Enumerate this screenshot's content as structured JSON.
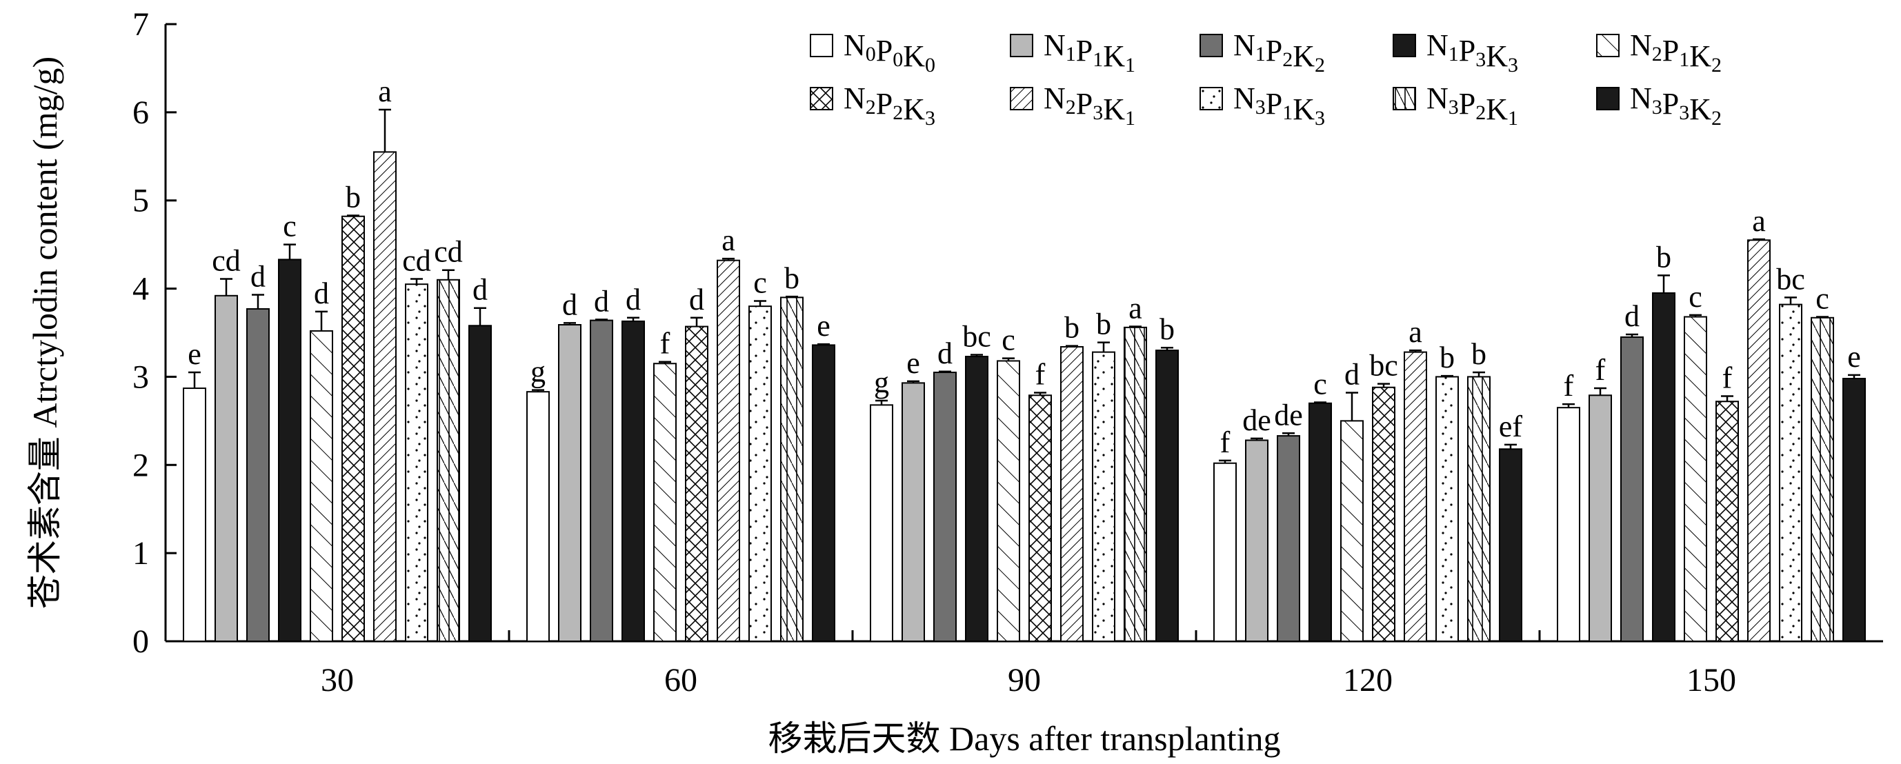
{
  "chart_data": {
    "type": "bar",
    "xlabel": "移栽后天数 Days after transplanting",
    "ylabel": "苍术素含量 Atrctylodin content (mg/g)",
    "ylim": [
      0,
      7
    ],
    "yticks": [
      "0",
      "1",
      "2",
      "3",
      "4",
      "5",
      "6",
      "7"
    ],
    "grid": false,
    "legend_position": "top-right",
    "categories": [
      "30",
      "60",
      "90",
      "120",
      "150"
    ],
    "series": [
      {
        "name": "N0P0K0",
        "legend": [
          [
            "N",
            "0"
          ],
          [
            "P",
            "0"
          ],
          [
            "K",
            "0"
          ]
        ],
        "pattern": "white",
        "values": [
          2.87,
          2.83,
          2.68,
          2.02,
          2.65
        ],
        "errors": [
          0.18,
          0.02,
          0.05,
          0.03,
          0.04
        ],
        "labels": [
          "e",
          "g",
          "g",
          "f",
          "f"
        ]
      },
      {
        "name": "N1P1K1",
        "legend": [
          [
            "N",
            "1"
          ],
          [
            "P",
            "1"
          ],
          [
            "K",
            "1"
          ]
        ],
        "pattern": "lightgray",
        "values": [
          3.92,
          3.59,
          2.93,
          2.28,
          2.79
        ],
        "errors": [
          0.19,
          0.02,
          0.02,
          0.02,
          0.08
        ],
        "labels": [
          "cd",
          "d",
          "e",
          "de",
          "f"
        ]
      },
      {
        "name": "N1P2K2",
        "legend": [
          [
            "N",
            "1"
          ],
          [
            "P",
            "2"
          ],
          [
            "K",
            "2"
          ]
        ],
        "pattern": "darkgray",
        "values": [
          3.77,
          3.64,
          3.05,
          2.33,
          3.45
        ],
        "errors": [
          0.16,
          0.01,
          0.01,
          0.03,
          0.03
        ],
        "labels": [
          "d",
          "d",
          "d",
          "de",
          "d"
        ]
      },
      {
        "name": "N1P3K3",
        "legend": [
          [
            "N",
            "1"
          ],
          [
            "P",
            "3"
          ],
          [
            "K",
            "3"
          ]
        ],
        "pattern": "black",
        "values": [
          4.33,
          3.63,
          3.23,
          2.7,
          3.95
        ],
        "errors": [
          0.17,
          0.04,
          0.02,
          0.01,
          0.2
        ],
        "labels": [
          "c",
          "d",
          "bc",
          "c",
          "b"
        ]
      },
      {
        "name": "N2P1K2",
        "legend": [
          [
            "N",
            "2"
          ],
          [
            "P",
            "1"
          ],
          [
            "K",
            "2"
          ]
        ],
        "pattern": "diag-sparse",
        "values": [
          3.52,
          3.15,
          3.18,
          2.5,
          3.68
        ],
        "errors": [
          0.22,
          0.02,
          0.03,
          0.32,
          0.02
        ],
        "labels": [
          "d",
          "f",
          "c",
          "d",
          "c"
        ]
      },
      {
        "name": "N2P2K3",
        "legend": [
          [
            "N",
            "2"
          ],
          [
            "P",
            "2"
          ],
          [
            "K",
            "3"
          ]
        ],
        "pattern": "crosshatch",
        "values": [
          4.82,
          3.57,
          2.79,
          2.88,
          2.72
        ],
        "errors": [
          0.01,
          0.1,
          0.03,
          0.04,
          0.06
        ],
        "labels": [
          "b",
          "d",
          "f",
          "bc",
          "f"
        ]
      },
      {
        "name": "N2P3K1",
        "legend": [
          [
            "N",
            "2"
          ],
          [
            "P",
            "3"
          ],
          [
            "K",
            "1"
          ]
        ],
        "pattern": "diag-dense",
        "values": [
          5.55,
          4.32,
          3.34,
          3.28,
          4.55
        ],
        "errors": [
          0.48,
          0.02,
          0.01,
          0.02,
          0.01
        ],
        "labels": [
          "a",
          "a",
          "b",
          "a",
          "a"
        ]
      },
      {
        "name": "N3P1K3",
        "legend": [
          [
            "N",
            "3"
          ],
          [
            "P",
            "1"
          ],
          [
            "K",
            "3"
          ]
        ],
        "pattern": "dots",
        "values": [
          4.05,
          3.8,
          3.28,
          3.0,
          3.82
        ],
        "errors": [
          0.06,
          0.06,
          0.11,
          0.01,
          0.08
        ],
        "labels": [
          "cd",
          "c",
          "b",
          "b",
          "bc"
        ]
      },
      {
        "name": "N3P2K1",
        "legend": [
          [
            "N",
            "3"
          ],
          [
            "P",
            "2"
          ],
          [
            "K",
            "1"
          ]
        ],
        "pattern": "vertical-zigzag",
        "values": [
          4.1,
          3.9,
          3.56,
          3.0,
          3.67
        ],
        "errors": [
          0.11,
          0.01,
          0.01,
          0.05,
          0.01
        ],
        "labels": [
          "cd",
          "b",
          "a",
          "b",
          "c"
        ]
      },
      {
        "name": "N3P3K2",
        "legend": [
          [
            "N",
            "3"
          ],
          [
            "P",
            "3"
          ],
          [
            "K",
            "2"
          ]
        ],
        "pattern": "black",
        "values": [
          3.58,
          3.36,
          3.3,
          2.18,
          2.98
        ],
        "errors": [
          0.2,
          0.01,
          0.03,
          0.05,
          0.04
        ],
        "labels": [
          "d",
          "e",
          "b",
          "ef",
          "e"
        ]
      }
    ]
  }
}
